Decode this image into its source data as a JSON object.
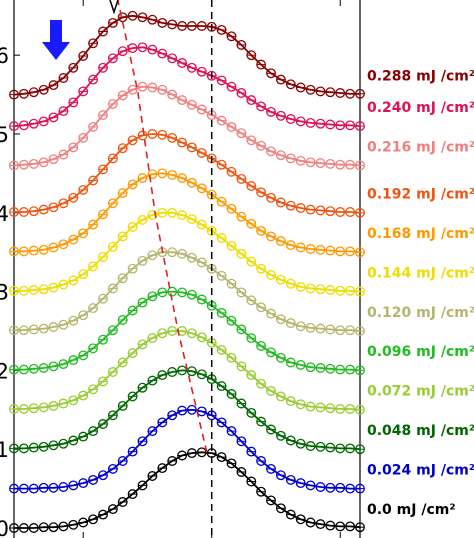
{
  "chart_data": {
    "type": "line",
    "xlim": [
      0,
      35
    ],
    "ylim": [
      0,
      6.7
    ],
    "yticks": [
      {
        "value": 0,
        "label": "0"
      },
      {
        "value": 1,
        "label": "1"
      },
      {
        "value": 2,
        "label": "2"
      },
      {
        "value": 3,
        "label": "3"
      },
      {
        "value": 4,
        "label": "4"
      },
      {
        "value": 5,
        "label": "5"
      },
      {
        "value": 6,
        "label": "6"
      }
    ],
    "marker": "open-circle",
    "grid": false,
    "legend_placement": "right of each curve",
    "vline_x": 20,
    "series": [
      {
        "name": "0.0 mJ /cm²",
        "color": "#000000",
        "offset": 0.0,
        "values": [
          0.0,
          0.0,
          0.0,
          0.01,
          0.01,
          0.02,
          0.04,
          0.07,
          0.11,
          0.17,
          0.24,
          0.33,
          0.43,
          0.54,
          0.66,
          0.76,
          0.85,
          0.92,
          0.95,
          0.96,
          0.95,
          0.9,
          0.82,
          0.71,
          0.59,
          0.46,
          0.35,
          0.25,
          0.17,
          0.11,
          0.07,
          0.05,
          0.03,
          0.02,
          0.02,
          0.01
        ]
      },
      {
        "name": "0.024 mJ /cm²",
        "color": "#0000cc",
        "offset": 0.5,
        "values": [
          0.0,
          0.0,
          0.0,
          0.01,
          0.01,
          0.02,
          0.04,
          0.07,
          0.11,
          0.17,
          0.25,
          0.35,
          0.47,
          0.6,
          0.73,
          0.84,
          0.93,
          0.99,
          1.0,
          0.98,
          0.93,
          0.84,
          0.73,
          0.6,
          0.47,
          0.35,
          0.25,
          0.17,
          0.11,
          0.07,
          0.04,
          0.02,
          0.01,
          0.01,
          0.0,
          0.0
        ]
      },
      {
        "name": "0.048 mJ /cm²",
        "color": "#006600",
        "offset": 1.0,
        "values": [
          0.01,
          0.01,
          0.02,
          0.03,
          0.05,
          0.07,
          0.11,
          0.16,
          0.23,
          0.32,
          0.43,
          0.55,
          0.67,
          0.78,
          0.87,
          0.94,
          0.98,
          1.0,
          0.99,
          0.95,
          0.89,
          0.8,
          0.7,
          0.58,
          0.46,
          0.35,
          0.25,
          0.17,
          0.11,
          0.07,
          0.04,
          0.03,
          0.02,
          0.01,
          0.01,
          0.0
        ]
      },
      {
        "name": "0.072 mJ /cm²",
        "color": "#99cc33",
        "offset": 1.5,
        "values": [
          0.01,
          0.01,
          0.02,
          0.03,
          0.05,
          0.08,
          0.12,
          0.18,
          0.26,
          0.36,
          0.48,
          0.6,
          0.72,
          0.83,
          0.91,
          0.97,
          1.0,
          1.0,
          0.97,
          0.92,
          0.85,
          0.76,
          0.66,
          0.55,
          0.44,
          0.33,
          0.24,
          0.17,
          0.11,
          0.07,
          0.04,
          0.03,
          0.02,
          0.01,
          0.01,
          0.0
        ]
      },
      {
        "name": "0.096 mJ /cm²",
        "color": "#22bb22",
        "offset": 2.0,
        "values": [
          0.01,
          0.01,
          0.02,
          0.03,
          0.05,
          0.08,
          0.13,
          0.19,
          0.28,
          0.39,
          0.51,
          0.64,
          0.76,
          0.86,
          0.94,
          0.99,
          1.0,
          0.99,
          0.96,
          0.9,
          0.82,
          0.73,
          0.63,
          0.52,
          0.41,
          0.31,
          0.23,
          0.16,
          0.1,
          0.07,
          0.04,
          0.03,
          0.02,
          0.01,
          0.01,
          0.0
        ]
      },
      {
        "name": "0.120 mJ /cm²",
        "color": "#b5b56e",
        "offset": 2.5,
        "values": [
          0.01,
          0.01,
          0.02,
          0.03,
          0.05,
          0.08,
          0.13,
          0.2,
          0.29,
          0.41,
          0.54,
          0.67,
          0.79,
          0.89,
          0.96,
          1.0,
          1.0,
          0.98,
          0.93,
          0.87,
          0.79,
          0.7,
          0.6,
          0.49,
          0.39,
          0.3,
          0.22,
          0.15,
          0.1,
          0.06,
          0.04,
          0.03,
          0.02,
          0.01,
          0.01,
          0.0
        ]
      },
      {
        "name": "0.144 mJ /cm²",
        "color": "#eedd00",
        "offset": 3.0,
        "values": [
          0.01,
          0.01,
          0.02,
          0.03,
          0.05,
          0.09,
          0.14,
          0.22,
          0.32,
          0.44,
          0.57,
          0.7,
          0.82,
          0.91,
          0.97,
          1.0,
          1.0,
          0.97,
          0.92,
          0.85,
          0.77,
          0.68,
          0.58,
          0.48,
          0.38,
          0.29,
          0.21,
          0.15,
          0.1,
          0.06,
          0.04,
          0.03,
          0.02,
          0.01,
          0.01,
          0.0
        ]
      },
      {
        "name": "0.168 mJ /cm²",
        "color": "#ff9900",
        "offset": 3.5,
        "values": [
          0.01,
          0.01,
          0.02,
          0.03,
          0.06,
          0.1,
          0.16,
          0.24,
          0.35,
          0.48,
          0.62,
          0.75,
          0.86,
          0.94,
          0.99,
          1.0,
          0.98,
          0.94,
          0.88,
          0.81,
          0.73,
          0.64,
          0.55,
          0.45,
          0.36,
          0.27,
          0.2,
          0.14,
          0.09,
          0.06,
          0.04,
          0.03,
          0.02,
          0.01,
          0.01,
          0.0
        ]
      },
      {
        "name": "0.192 mJ /cm²",
        "color": "#ee5511",
        "offset": 4.0,
        "values": [
          0.01,
          0.01,
          0.02,
          0.04,
          0.07,
          0.12,
          0.19,
          0.29,
          0.41,
          0.55,
          0.69,
          0.82,
          0.92,
          0.98,
          1.0,
          0.99,
          0.95,
          0.89,
          0.83,
          0.76,
          0.69,
          0.61,
          0.52,
          0.43,
          0.34,
          0.26,
          0.19,
          0.13,
          0.09,
          0.06,
          0.04,
          0.03,
          0.02,
          0.01,
          0.01,
          0.0
        ]
      },
      {
        "name": "0.216 mJ /cm²",
        "color": "#f08080",
        "offset": 4.6,
        "values": [
          0.0,
          0.01,
          0.02,
          0.04,
          0.08,
          0.14,
          0.23,
          0.35,
          0.49,
          0.64,
          0.78,
          0.89,
          0.96,
          1.0,
          0.99,
          0.96,
          0.9,
          0.83,
          0.77,
          0.71,
          0.64,
          0.57,
          0.49,
          0.41,
          0.32,
          0.25,
          0.18,
          0.13,
          0.09,
          0.06,
          0.04,
          0.03,
          0.02,
          0.01,
          0.01,
          0.0
        ]
      },
      {
        "name": "0.240 mJ /cm²",
        "color": "#dd1155",
        "offset": 5.1,
        "values": [
          0.0,
          0.01,
          0.03,
          0.06,
          0.11,
          0.19,
          0.3,
          0.44,
          0.59,
          0.74,
          0.86,
          0.95,
          0.99,
          1.0,
          0.97,
          0.92,
          0.86,
          0.8,
          0.74,
          0.69,
          0.64,
          0.58,
          0.5,
          0.42,
          0.33,
          0.25,
          0.18,
          0.13,
          0.09,
          0.06,
          0.04,
          0.03,
          0.02,
          0.01,
          0.01,
          0.0
        ]
      },
      {
        "name": "0.288 mJ /cm²",
        "color": "#880000",
        "offset": 5.5,
        "values": [
          0.0,
          0.01,
          0.03,
          0.06,
          0.12,
          0.21,
          0.34,
          0.49,
          0.65,
          0.8,
          0.91,
          0.98,
          1.0,
          0.98,
          0.95,
          0.91,
          0.89,
          0.87,
          0.87,
          0.87,
          0.86,
          0.82,
          0.74,
          0.63,
          0.5,
          0.38,
          0.27,
          0.19,
          0.13,
          0.09,
          0.06,
          0.04,
          0.03,
          0.02,
          0.01,
          0.01
        ]
      }
    ]
  }
}
